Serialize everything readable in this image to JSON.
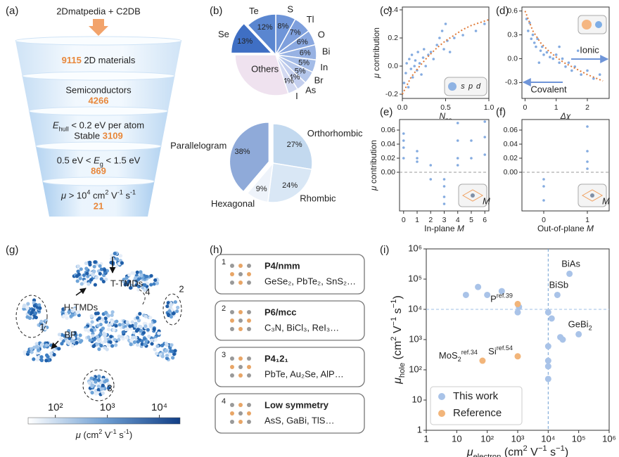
{
  "panel_labels": [
    "(a)",
    "(b)",
    "(c)",
    "(d)",
    "(e)",
    "(f)",
    "(g)",
    "(h)",
    "(i)"
  ],
  "funnel": {
    "source": "2Dmatpedia + C2DB",
    "stages": [
      {
        "lines": [
          [
            {
              "text": "9115",
              "style": "num"
            },
            {
              "text": " 2D materials"
            }
          ]
        ]
      },
      {
        "lines": [
          [
            {
              "text": "Semiconductors"
            }
          ],
          [
            {
              "text": "4266",
              "style": "num"
            }
          ]
        ]
      },
      {
        "lines": [
          [
            {
              "text": "E",
              "style": "it"
            },
            {
              "text": "hull",
              "style": "sub"
            },
            {
              "text": " < 0.2 eV per atom"
            }
          ],
          [
            {
              "text": "Stable "
            },
            {
              "text": "3109",
              "style": "num"
            }
          ]
        ]
      },
      {
        "lines": [
          [
            {
              "text": "0.5 eV < "
            },
            {
              "text": "E",
              "style": "it"
            },
            {
              "text": "g",
              "style": "sub"
            },
            {
              "text": " < 1.5 eV"
            }
          ],
          [
            {
              "text": "869",
              "style": "num"
            }
          ]
        ]
      },
      {
        "lines": [
          [
            {
              "text": "μ",
              "style": "it"
            },
            {
              "text": " > 10"
            },
            {
              "text": "4",
              "style": "sup"
            },
            {
              "text": " cm"
            },
            {
              "text": "2",
              "style": "sup"
            },
            {
              "text": " V"
            },
            {
              "text": "-1",
              "style": "sup"
            },
            {
              "text": " s"
            },
            {
              "text": "-1",
              "style": "sup"
            }
          ],
          [
            {
              "text": "21",
              "style": "num"
            }
          ]
        ]
      }
    ]
  },
  "elements_pie": {
    "type": "pie",
    "categories": [
      "S",
      "Tl",
      "O",
      "Bi",
      "In",
      "Br",
      "As",
      "I",
      "Others",
      "Se",
      "Te"
    ],
    "values": [
      8,
      7,
      6,
      6,
      5,
      5,
      4,
      4,
      30,
      13,
      12
    ],
    "value_labels": [
      "8%",
      "7%",
      "6%",
      "6%",
      "5%",
      "5%",
      "4%",
      "4%",
      null,
      "13%",
      "12%"
    ],
    "colors": [
      "#6f95d8",
      "#7e9fdc",
      "#8aa8e0",
      "#97b2e3",
      "#a4bce7",
      "#b4c6ea",
      "#c4cfee",
      "#d3d9f1",
      "#efe2ef",
      "#3f6fc4",
      "#5a86d0"
    ],
    "exploded": [
      false,
      false,
      false,
      false,
      false,
      false,
      false,
      false,
      false,
      true,
      false
    ]
  },
  "lattice_pie": {
    "type": "pie",
    "categories": [
      "Orthorhombic",
      "Rhombic",
      "Hexagonal",
      "Parallelogram"
    ],
    "values": [
      27,
      24,
      9,
      38
    ],
    "value_labels": [
      "27%",
      "24%",
      "9%",
      "38%"
    ],
    "colors": [
      "#c3d9ef",
      "#d9e7f5",
      "#eef3fa",
      "#8faad9"
    ],
    "exploded": [
      false,
      false,
      false,
      true
    ]
  },
  "npe_plot": {
    "type": "scatter",
    "xlabel": [
      {
        "text": "N",
        "style": "it"
      },
      {
        "text": "pe",
        "style": "sub"
      }
    ],
    "ylabel": [
      {
        "text": "μ",
        "style": "it"
      },
      {
        "text": " contribution"
      }
    ],
    "xlim": [
      0,
      1.0
    ],
    "ylim": [
      -0.23,
      0.42
    ],
    "xticks": [
      {
        "value": 0,
        "label": "0.0"
      },
      0.5,
      {
        "value": 1.0,
        "label": "1.0"
      }
    ],
    "yticks": [
      -0.2,
      {
        "value": 0,
        "label": "0.0"
      },
      0.2,
      0.4
    ],
    "color": "#5b8fd6",
    "x": [
      0.02,
      0.04,
      0.05,
      0.07,
      0.08,
      0.1,
      0.11,
      0.12,
      0.14,
      0.15,
      0.17,
      0.18,
      0.2,
      0.22,
      0.24,
      0.25,
      0.27,
      0.3,
      0.33,
      0.36,
      0.4,
      0.43,
      0.46,
      0.48,
      0.5,
      0.52,
      0.55,
      0.6,
      0.7,
      0.85,
      0.95
    ],
    "y": [
      -0.12,
      -0.05,
      0.02,
      -0.15,
      0.05,
      -0.02,
      0.08,
      -0.08,
      0.0,
      0.04,
      -0.03,
      0.1,
      0.02,
      -0.06,
      0.06,
      0.12,
      0.0,
      0.08,
      0.1,
      0.05,
      0.15,
      0.2,
      0.25,
      0.12,
      0.3,
      0.18,
      0.1,
      0.2,
      0.22,
      0.25,
      0.3
    ],
    "trend": {
      "color": "#e07b39",
      "x": [
        0,
        0.1,
        0.2,
        0.3,
        0.4,
        0.5,
        0.6,
        0.7,
        0.8,
        0.9,
        1.0
      ],
      "y": [
        -0.2,
        -0.08,
        0.0,
        0.07,
        0.13,
        0.18,
        0.22,
        0.26,
        0.29,
        0.31,
        0.33
      ]
    },
    "inset_labels": [
      "s",
      "p",
      "d"
    ]
  },
  "chi_plot": {
    "type": "scatter",
    "xlabel": [
      {
        "text": "Δχ",
        "style": "it"
      }
    ],
    "xlim": [
      -0.1,
      2.7
    ],
    "ylim": [
      -0.5,
      0.65
    ],
    "xticks": [
      0,
      1,
      2
    ],
    "yticks": [
      -0.3,
      {
        "value": 0,
        "label": "0.0"
      },
      0.3,
      0.6
    ],
    "color": "#5b8fd6",
    "x": [
      0.05,
      0.1,
      0.15,
      0.2,
      0.25,
      0.3,
      0.35,
      0.4,
      0.5,
      0.55,
      0.6,
      0.7,
      0.8,
      0.9,
      1.0,
      1.1,
      1.2,
      1.3,
      1.4,
      1.5,
      1.6,
      1.8,
      2.0,
      2.2,
      2.4,
      1.7,
      1.1,
      0.45
    ],
    "y": [
      0.5,
      0.35,
      0.45,
      0.25,
      0.3,
      0.2,
      0.15,
      0.25,
      0.1,
      0.15,
      0.05,
      0.08,
      0.02,
      0.0,
      0.05,
      -0.05,
      0.0,
      -0.1,
      -0.05,
      -0.15,
      -0.1,
      -0.2,
      -0.15,
      -0.25,
      -0.2,
      0.1,
      0.15,
      -0.05
    ],
    "trend": {
      "color": "#e07b39",
      "x": [
        0,
        0.25,
        0.5,
        0.75,
        1,
        1.25,
        1.5,
        1.75,
        2,
        2.25,
        2.5
      ],
      "y": [
        0.6,
        0.35,
        0.2,
        0.1,
        0.02,
        -0.05,
        -0.1,
        -0.15,
        -0.2,
        -0.24,
        -0.28
      ]
    },
    "annotations": [
      "Ionic",
      "Covalent"
    ]
  },
  "inplane_plot": {
    "type": "scatter",
    "xlabel": [
      {
        "text": "In-plane "
      },
      {
        "text": "M",
        "style": "it"
      }
    ],
    "ylabel": [
      {
        "text": "μ",
        "style": "it"
      },
      {
        "text": " contribution"
      }
    ],
    "xlim": [
      -0.3,
      6.3
    ],
    "ylim": [
      -0.055,
      0.075
    ],
    "xticks": [
      0,
      1,
      2,
      3,
      4,
      5,
      6
    ],
    "yticks": [
      {
        "value": 0,
        "label": "0.00"
      },
      0.02,
      0.04,
      0.06
    ],
    "hline": 0,
    "color": "#5b8fd6",
    "x": [
      0,
      0,
      0,
      0,
      1,
      1,
      1,
      2,
      2,
      3,
      3,
      3,
      3,
      4,
      4,
      4,
      4,
      5,
      5,
      6,
      6,
      6
    ],
    "y": [
      0.055,
      0.045,
      0.035,
      0.02,
      0.03,
      0.02,
      0.015,
      0.01,
      -0.01,
      -0.01,
      -0.02,
      -0.035,
      -0.045,
      0.07,
      0.045,
      0.02,
      0.01,
      0.045,
      0.02,
      0.072,
      0.05,
      0.025
    ],
    "inset_label": "M"
  },
  "outplane_plot": {
    "type": "scatter",
    "xlabel": [
      {
        "text": "Out-of-plane "
      },
      {
        "text": "M",
        "style": "it"
      }
    ],
    "xlim": [
      -0.5,
      1.5
    ],
    "ylim": [
      -0.055,
      0.075
    ],
    "xticks": [
      0,
      1
    ],
    "yticks": [
      {
        "value": 0,
        "label": "0.00"
      },
      0.02,
      0.04,
      0.06
    ],
    "hline": 0,
    "color": "#5b8fd6",
    "x": [
      0,
      0,
      0,
      1,
      1,
      1,
      1
    ],
    "y": [
      -0.01,
      -0.02,
      -0.04,
      0.065,
      0.03,
      0.015,
      0.005
    ],
    "inset_label": "M"
  },
  "embedding": {
    "annotations": [
      "T-TMDs",
      "H-TMDs",
      "BP",
      "1",
      "2",
      "3",
      "4"
    ],
    "colorbar": {
      "lim": [
        30,
        25000
      ],
      "ticks": [
        {
          "value": 100,
          "label": "10²"
        },
        {
          "value": 1000,
          "label": "10³"
        },
        {
          "value": 10000,
          "label": "10⁴"
        }
      ],
      "label": [
        {
          "text": "μ",
          "style": "it"
        },
        {
          "text": " (cm"
        },
        {
          "text": "2",
          "style": "sup"
        },
        {
          "text": " V"
        },
        {
          "text": "-1",
          "style": "sup"
        },
        {
          "text": " s"
        },
        {
          "text": "-1",
          "style": "sup"
        },
        {
          "text": ")"
        }
      ]
    }
  },
  "structures": [
    {
      "number": "1",
      "group": "P4/nmm",
      "examples": "GeSe₂, PbTe₂, SnS₂…"
    },
    {
      "number": "2",
      "group": "P6/mcc",
      "examples": "C₃N, BiCl₃, ReI₃…"
    },
    {
      "number": "3",
      "group": "P4₁2₁",
      "examples": "PbTe, Au₂Se, AlP…"
    },
    {
      "number": "4",
      "group": "Low symmetry",
      "examples": "AsS, GaBi, TlS…"
    }
  ],
  "mobility_plot": {
    "type": "scatter",
    "log": true,
    "xlabel": [
      {
        "text": "μ",
        "style": "it"
      },
      {
        "text": "electron",
        "style": "sub"
      },
      {
        "text": "  (cm"
      },
      {
        "text": "2",
        "style": "sup"
      },
      {
        "text": " V"
      },
      {
        "text": "−1",
        "style": "sup"
      },
      {
        "text": " s"
      },
      {
        "text": "−1",
        "style": "sup"
      },
      {
        "text": ")"
      }
    ],
    "ylabel": [
      {
        "text": "μ",
        "style": "it"
      },
      {
        "text": "hole",
        "style": "sub"
      },
      {
        "text": "  (cm"
      },
      {
        "text": "2",
        "style": "sup"
      },
      {
        "text": " V"
      },
      {
        "text": "−1",
        "style": "sup"
      },
      {
        "text": " s"
      },
      {
        "text": "−1",
        "style": "sup"
      },
      {
        "text": ")"
      }
    ],
    "xlim": [
      1,
      1000000
    ],
    "ylim": [
      1,
      1000000
    ],
    "xticks": [
      1,
      10,
      {
        "value": 100,
        "label": "10²"
      },
      {
        "value": 1000,
        "label": "10³"
      },
      {
        "value": 10000,
        "label": "10⁴"
      },
      {
        "value": 100000,
        "label": "10⁵"
      },
      {
        "value": 1000000,
        "label": "10⁶"
      }
    ],
    "yticks": [
      1,
      10,
      {
        "value": 100,
        "label": "10²"
      },
      {
        "value": 1000,
        "label": "10³"
      },
      {
        "value": 10000,
        "label": "10⁴"
      },
      {
        "value": 100000,
        "label": "10⁵"
      },
      {
        "value": 1000000,
        "label": "10⁶"
      }
    ],
    "hline": 10000,
    "vline": 10000,
    "legend": "lower left",
    "series": [
      {
        "name": "This work",
        "color": "#a9c3e8",
        "x": [
          20,
          50,
          100,
          300,
          1000,
          1100,
          10000,
          10000,
          10000,
          10000,
          10000,
          13000,
          20000,
          25000,
          30000,
          50000,
          100000
        ],
        "values": [
          30000,
          55000,
          30000,
          40000,
          8000,
          12000,
          8000,
          600,
          200,
          130,
          50,
          5000,
          30000,
          1200,
          1000,
          150000,
          1500
        ],
        "point_labels": [
          null,
          null,
          null,
          null,
          null,
          null,
          null,
          null,
          null,
          null,
          null,
          null,
          [
            {
              "text": "BiSb"
            }
          ],
          null,
          null,
          [
            {
              "text": "BiAs"
            }
          ],
          [
            {
              "text": "GeBi"
            },
            {
              "text": "2",
              "style": "sub"
            }
          ]
        ]
      },
      {
        "name": "Reference",
        "color": "#f2b57a",
        "x": [
          1000,
          70,
          1000
        ],
        "values": [
          15000,
          200,
          280
        ],
        "point_labels": [
          [
            {
              "text": "P"
            },
            {
              "text": "ref.39",
              "style": "sup"
            }
          ],
          [
            {
              "text": "MoS"
            },
            {
              "text": "2",
              "style": "sub"
            },
            {
              "text": "ref.34",
              "style": "sup"
            }
          ],
          [
            {
              "text": "Si"
            },
            {
              "text": "ref.54",
              "style": "sup"
            }
          ]
        ]
      }
    ]
  }
}
